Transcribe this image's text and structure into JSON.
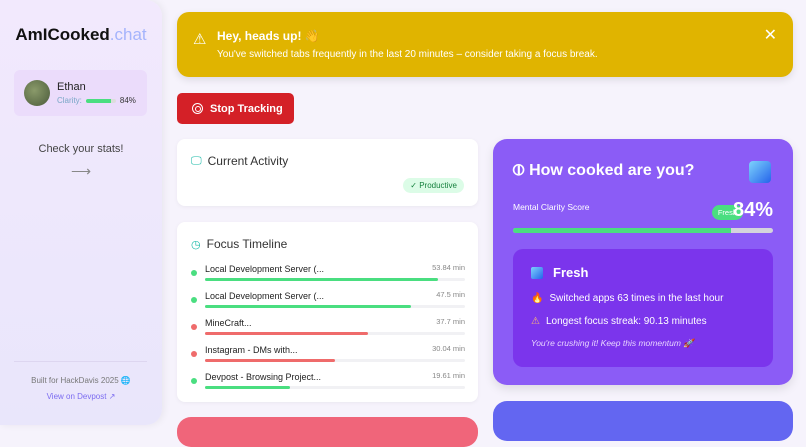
{
  "sidebar": {
    "logo_main": "AmICooked",
    "logo_suffix": ".chat",
    "user": {
      "name": "Ethan",
      "clarity_label": "Clarity:",
      "clarity_value": "84%",
      "clarity_fraction": 0.84
    },
    "check_stats": "Check your stats!",
    "arrow": "⟶",
    "built_for": "Built for HackDavis 2025 🌐",
    "devpost_link": "View on Devpost ↗"
  },
  "alert": {
    "title": "Hey, heads up! 👋",
    "message": "You've switched tabs frequently in the last 20 minutes – consider taking a focus break.",
    "icon": "warning-icon",
    "close": "✕"
  },
  "stop_button": {
    "label": "Stop Tracking",
    "color": "#d42027"
  },
  "current_activity": {
    "title": "Current Activity",
    "badge": "✓ Productive"
  },
  "focus_timeline": {
    "title": "Focus Timeline",
    "max_minutes": 60,
    "items": [
      {
        "name": "Local Development Server (...",
        "time": "53.84 min",
        "minutes": 53.84,
        "productive": true
      },
      {
        "name": "Local Development Server (...",
        "time": "47.5 min",
        "minutes": 47.5,
        "productive": true
      },
      {
        "name": "MineCraft...",
        "time": "37.7 min",
        "minutes": 37.7,
        "productive": false
      },
      {
        "name": "Instagram - DMs with...",
        "time": "30.04 min",
        "minutes": 30.04,
        "productive": false
      },
      {
        "name": "Devpost - Browsing Project...",
        "time": "19.61 min",
        "minutes": 19.61,
        "productive": true
      }
    ]
  },
  "cooked": {
    "title": "How cooked are you?",
    "score_label": "Mental Clarity Score",
    "badge": "Fresh",
    "percent": "84%",
    "fraction": 0.84,
    "status": "Fresh",
    "switched": "Switched apps 63 times in the last hour",
    "streak": "Longest focus streak: 90.13 minutes",
    "quote": "You're crushing it! Keep this momentum 🚀"
  },
  "colors": {
    "productive": "#4ade80",
    "unproductive": "#ef6b6b",
    "alert": "#e0b400",
    "card_purple": "#8b5cf6"
  }
}
